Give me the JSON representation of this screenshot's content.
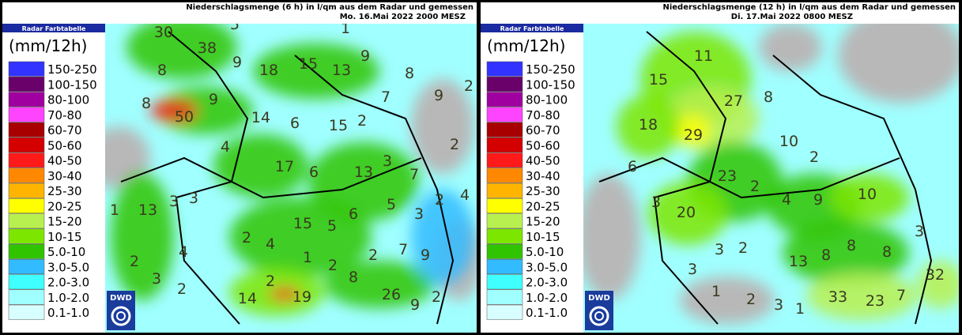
{
  "legend": {
    "header": "Radar Farbtabelle",
    "unit": "(mm/12h)",
    "logo": "DWD",
    "classes": [
      {
        "label": "150-250",
        "color": "#3333ff"
      },
      {
        "label": "100-150",
        "color": "#6a006a"
      },
      {
        "label": "80-100",
        "color": "#a000a0"
      },
      {
        "label": "70-80",
        "color": "#ff44ff"
      },
      {
        "label": "60-70",
        "color": "#a80000"
      },
      {
        "label": "50-60",
        "color": "#d40000"
      },
      {
        "label": "40-50",
        "color": "#ff1a1a"
      },
      {
        "label": "30-40",
        "color": "#ff8800"
      },
      {
        "label": "25-30",
        "color": "#ffb400"
      },
      {
        "label": "20-25",
        "color": "#ffff00"
      },
      {
        "label": "15-20",
        "color": "#b8f050"
      },
      {
        "label": "10-15",
        "color": "#7ce600"
      },
      {
        "label": "5.0-10",
        "color": "#30c400"
      },
      {
        "label": "3.0-5.0",
        "color": "#33bbff"
      },
      {
        "label": "2.0-3.0",
        "color": "#40ffff"
      },
      {
        "label": "1.0-2.0",
        "color": "#a0ffff"
      },
      {
        "label": "0.1-1.0",
        "color": "#d8ffff"
      }
    ]
  },
  "panels": [
    {
      "title": "Niederschlagsmenge (6 h) in l/qm aus dem Radar und gemessen",
      "date": "Mo. 16.Mai 2022 2000 MESZ",
      "labels": [
        30,
        38,
        5,
        1,
        9,
        8,
        9,
        18,
        15,
        13,
        8,
        2,
        9,
        8,
        9,
        50,
        14,
        6,
        15,
        2,
        7,
        2,
        4,
        17,
        6,
        13,
        3,
        7,
        2,
        4,
        1,
        13,
        3,
        3,
        6,
        5,
        3,
        15,
        5,
        2,
        4,
        1,
        2,
        2,
        7,
        9,
        2,
        4,
        3,
        2,
        2,
        8,
        14,
        19,
        26,
        9,
        2
      ]
    },
    {
      "title": "Niederschlagsmenge (12 h) in l/qm aus dem Radar und gemessen",
      "date": "Di. 17.Mai 2022 0800 MESZ",
      "labels": [
        11,
        15,
        27,
        8,
        18,
        29,
        10,
        2,
        6,
        23,
        2,
        4,
        9,
        10,
        3,
        20,
        3,
        13,
        8,
        8,
        8,
        3,
        2,
        3,
        32,
        1,
        2,
        3,
        1,
        33,
        23,
        7
      ]
    }
  ]
}
